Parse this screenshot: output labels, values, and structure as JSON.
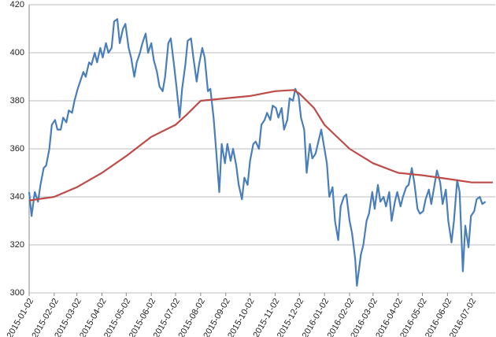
{
  "chart_data": {
    "type": "line",
    "xlim": [
      "2015-01-02",
      "2016-07-31"
    ],
    "xticks": [
      "2015-01-02",
      "2015-02-02",
      "2015-03-02",
      "2015-04-02",
      "2015-05-02",
      "2015-06-02",
      "2015-07-02",
      "2015-08-02",
      "2015-09-02",
      "2015-10-02",
      "2015-11-02",
      "2015-12-02",
      "2016-01-02",
      "2016-02-02",
      "2016-03-02",
      "2016-04-02",
      "2016-05-02",
      "2016-06-02",
      "2016-07-02"
    ],
    "ylim": [
      300,
      420
    ],
    "yticks": [
      300,
      320,
      340,
      360,
      380,
      400,
      420
    ],
    "grid": true,
    "series": [
      {
        "color": "#4a7ebb",
        "x": [
          "2015-01-02",
          "2015-01-05",
          "2015-01-09",
          "2015-01-13",
          "2015-01-16",
          "2015-01-20",
          "2015-01-23",
          "2015-01-27",
          "2015-01-30",
          "2015-02-03",
          "2015-02-06",
          "2015-02-10",
          "2015-02-13",
          "2015-02-17",
          "2015-02-20",
          "2015-02-24",
          "2015-02-27",
          "2015-03-03",
          "2015-03-06",
          "2015-03-10",
          "2015-03-13",
          "2015-03-17",
          "2015-03-20",
          "2015-03-24",
          "2015-03-27",
          "2015-03-31",
          "2015-04-03",
          "2015-04-07",
          "2015-04-10",
          "2015-04-14",
          "2015-04-17",
          "2015-04-21",
          "2015-04-24",
          "2015-04-28",
          "2015-05-01",
          "2015-05-05",
          "2015-05-08",
          "2015-05-12",
          "2015-05-15",
          "2015-05-19",
          "2015-05-22",
          "2015-05-26",
          "2015-05-29",
          "2015-06-02",
          "2015-06-05",
          "2015-06-09",
          "2015-06-12",
          "2015-06-16",
          "2015-06-19",
          "2015-06-23",
          "2015-06-26",
          "2015-06-30",
          "2015-07-03",
          "2015-07-07",
          "2015-07-10",
          "2015-07-14",
          "2015-07-17",
          "2015-07-21",
          "2015-07-24",
          "2015-07-28",
          "2015-07-31",
          "2015-08-04",
          "2015-08-07",
          "2015-08-11",
          "2015-08-14",
          "2015-08-18",
          "2015-08-21",
          "2015-08-25",
          "2015-08-28",
          "2015-09-01",
          "2015-09-04",
          "2015-09-08",
          "2015-09-11",
          "2015-09-15",
          "2015-09-18",
          "2015-09-22",
          "2015-09-25",
          "2015-09-29",
          "2015-10-02",
          "2015-10-06",
          "2015-10-09",
          "2015-10-13",
          "2015-10-16",
          "2015-10-20",
          "2015-10-23",
          "2015-10-27",
          "2015-10-30",
          "2015-11-03",
          "2015-11-06",
          "2015-11-10",
          "2015-11-13",
          "2015-11-17",
          "2015-11-20",
          "2015-11-24",
          "2015-11-27",
          "2015-12-01",
          "2015-12-04",
          "2015-12-08",
          "2015-12-11",
          "2015-12-15",
          "2015-12-18",
          "2015-12-22",
          "2015-12-29",
          "2016-01-05",
          "2016-01-08",
          "2016-01-12",
          "2016-01-15",
          "2016-01-19",
          "2016-01-22",
          "2016-01-26",
          "2016-01-29",
          "2016-02-02",
          "2016-02-05",
          "2016-02-09",
          "2016-02-11",
          "2016-02-16",
          "2016-02-19",
          "2016-02-23",
          "2016-02-26",
          "2016-03-01",
          "2016-03-04",
          "2016-03-08",
          "2016-03-11",
          "2016-03-15",
          "2016-03-18",
          "2016-03-22",
          "2016-03-25",
          "2016-03-29",
          "2016-04-01",
          "2016-04-05",
          "2016-04-08",
          "2016-04-12",
          "2016-04-15",
          "2016-04-19",
          "2016-04-22",
          "2016-04-26",
          "2016-04-29",
          "2016-05-03",
          "2016-05-06",
          "2016-05-10",
          "2016-05-13",
          "2016-05-17",
          "2016-05-20",
          "2016-05-24",
          "2016-05-27",
          "2016-05-31",
          "2016-06-03",
          "2016-06-07",
          "2016-06-10",
          "2016-06-14",
          "2016-06-17",
          "2016-06-21",
          "2016-06-24",
          "2016-06-28",
          "2016-07-01",
          "2016-07-05",
          "2016-07-08",
          "2016-07-12",
          "2016-07-15",
          "2016-07-19"
        ],
        "values": [
          342,
          332,
          342,
          338,
          345,
          352,
          353,
          360,
          370,
          372,
          368,
          368,
          373,
          371,
          376,
          375,
          380,
          385,
          388,
          392,
          390,
          396,
          395,
          400,
          396,
          402,
          398,
          404,
          400,
          402,
          413,
          414,
          404,
          410,
          412,
          402,
          398,
          390,
          396,
          400,
          404,
          408,
          400,
          404,
          397,
          392,
          386,
          384,
          390,
          404,
          406,
          395,
          386,
          373,
          385,
          395,
          405,
          406,
          398,
          388,
          395,
          402,
          398,
          384,
          385,
          373,
          360,
          342,
          362,
          354,
          362,
          355,
          360,
          353,
          345,
          339,
          348,
          345,
          355,
          362,
          363,
          360,
          370,
          372,
          375,
          372,
          378,
          377,
          373,
          377,
          368,
          372,
          381,
          380,
          385,
          382,
          373,
          368,
          350,
          362,
          356,
          358,
          368,
          354,
          340,
          344,
          330,
          322,
          336,
          340,
          341,
          330,
          325,
          314,
          303,
          316,
          320,
          330,
          333,
          342,
          335,
          345,
          338,
          340,
          336,
          342,
          330,
          338,
          342,
          336,
          340,
          344,
          345,
          352,
          346,
          335,
          333,
          334,
          339,
          343,
          337,
          345,
          351,
          346,
          337,
          343,
          330,
          321,
          330,
          347,
          342,
          309,
          328,
          319,
          332,
          334,
          339,
          340,
          337,
          338
        ]
      },
      {
        "color": "#be4b48",
        "x": [
          "2015-01-02",
          "2015-02-02",
          "2015-03-02",
          "2015-04-02",
          "2015-05-02",
          "2015-06-02",
          "2015-07-02",
          "2015-07-15",
          "2015-08-02",
          "2015-09-02",
          "2015-10-02",
          "2015-11-02",
          "2015-11-25",
          "2015-12-02",
          "2015-12-20",
          "2016-01-02",
          "2016-02-02",
          "2016-03-02",
          "2016-04-02",
          "2016-05-02",
          "2016-06-02",
          "2016-07-02",
          "2016-07-28"
        ],
        "values": [
          338.5,
          340,
          344,
          350,
          357,
          365,
          370,
          374,
          380,
          381,
          382,
          384,
          384.5,
          383,
          377,
          370,
          360,
          354,
          350,
          349,
          347.5,
          346,
          346
        ]
      }
    ]
  }
}
